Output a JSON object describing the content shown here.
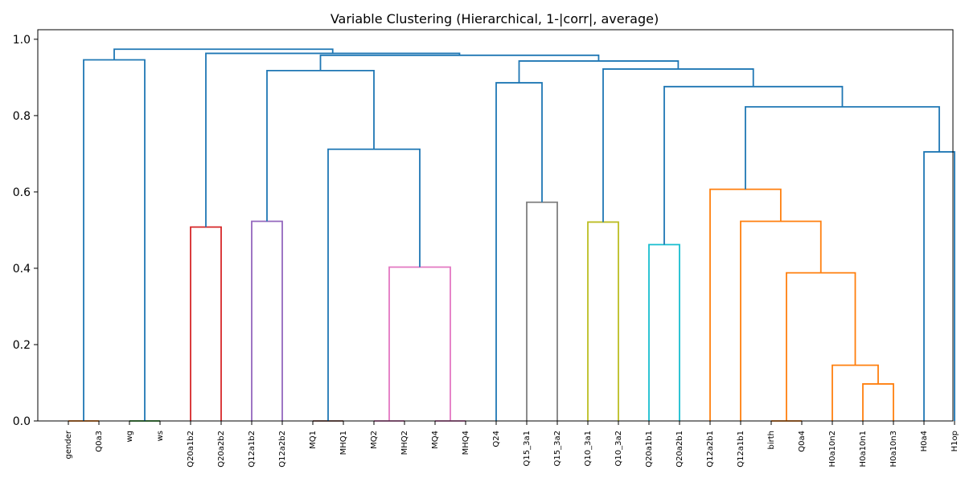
{
  "chart_data": {
    "type": "dendrogram",
    "title": "Variable Clustering (Hierarchical, 1-|corr|, average)",
    "xlabel": "",
    "ylabel": "",
    "ylim": [
      0,
      1.0
    ],
    "yticks": [
      "0.0",
      "0.2",
      "0.4",
      "0.6",
      "0.8",
      "1.0"
    ],
    "grid": false,
    "leaves": [
      "gender",
      "Q0a3",
      "wg",
      "ws",
      "Q20a1b2",
      "Q20a2b2",
      "Q12a1b2",
      "Q12a2b2",
      "MQ1",
      "MHQ1",
      "MQ2",
      "MHQ2",
      "MQ4",
      "MHQ4",
      "Q24",
      "Q15_3a1",
      "Q15_3a2",
      "Q10_3a1",
      "Q10_3a2",
      "Q20a1b1",
      "Q20a2b1",
      "Q12a2b1",
      "Q12a1b1",
      "birth",
      "Q0a4",
      "H0a10n2",
      "H0a10n1",
      "H0a10n3",
      "H0a4",
      "H1op"
    ],
    "merges": [
      {
        "left": "L0",
        "right": "L1",
        "height": 0.0,
        "color": "#ff7f0e"
      },
      {
        "left": "L2",
        "right": "L3",
        "height": 0.0,
        "color": "#2ca02c"
      },
      {
        "left": "L4",
        "right": "L5",
        "height": 0.508,
        "color": "#d62728"
      },
      {
        "left": "L6",
        "right": "L7",
        "height": 0.523,
        "color": "#9467bd"
      },
      {
        "left": "L8",
        "right": "L9",
        "height": 0.0,
        "color": "#8c564b"
      },
      {
        "left": "L10",
        "right": "L11",
        "height": 0.0,
        "color": "#e377c2"
      },
      {
        "left": "L12",
        "right": "L13",
        "height": 0.0,
        "color": "#e377c2"
      },
      {
        "left": "M5",
        "right": "M6",
        "height": 0.403,
        "color": "#e377c2"
      },
      {
        "left": "L15",
        "right": "L16",
        "height": 0.573,
        "color": "#7f7f7f"
      },
      {
        "left": "L17",
        "right": "L18",
        "height": 0.521,
        "color": "#bcbd22"
      },
      {
        "left": "L19",
        "right": "L20",
        "height": 0.462,
        "color": "#17becf"
      },
      {
        "left": "L23",
        "right": "L24",
        "height": 0.0,
        "color": "#ff7f0e"
      },
      {
        "left": "L26",
        "right": "L27",
        "height": 0.097,
        "color": "#ff7f0e"
      },
      {
        "left": "L25",
        "right": "M12",
        "height": 0.146,
        "color": "#ff7f0e"
      },
      {
        "left": "M11",
        "right": "M13",
        "height": 0.388,
        "color": "#ff7f0e"
      },
      {
        "left": "L22",
        "right": "M14",
        "height": 0.523,
        "color": "#ff7f0e"
      },
      {
        "left": "L21",
        "right": "M15",
        "height": 0.607,
        "color": "#ff7f0e"
      },
      {
        "left": "L28",
        "right": "L29",
        "height": 0.705,
        "color": "#1f77b4"
      },
      {
        "left": "M16",
        "right": "M17",
        "height": 0.823,
        "color": "#1f77b4"
      },
      {
        "left": "M10",
        "right": "M18",
        "height": 0.876,
        "color": "#1f77b4"
      },
      {
        "left": "M9",
        "right": "M19",
        "height": 0.922,
        "color": "#1f77b4"
      },
      {
        "left": "L14",
        "right": "M8",
        "height": 0.886,
        "color": "#1f77b4"
      },
      {
        "left": "M21",
        "right": "M20",
        "height": 0.943,
        "color": "#1f77b4"
      },
      {
        "left": "M4",
        "right": "M7",
        "height": 0.712,
        "color": "#1f77b4"
      },
      {
        "left": "M3",
        "right": "M23",
        "height": 0.918,
        "color": "#1f77b4"
      },
      {
        "left": "M24",
        "right": "M22",
        "height": 0.958,
        "color": "#1f77b4"
      },
      {
        "left": "M2",
        "right": "M25",
        "height": 0.963,
        "color": "#1f77b4"
      },
      {
        "left": "M0",
        "right": "M1",
        "height": 0.946,
        "color": "#1f77b4"
      },
      {
        "left": "M27",
        "right": "M26",
        "height": 0.974,
        "color": "#1f77b4"
      }
    ]
  }
}
